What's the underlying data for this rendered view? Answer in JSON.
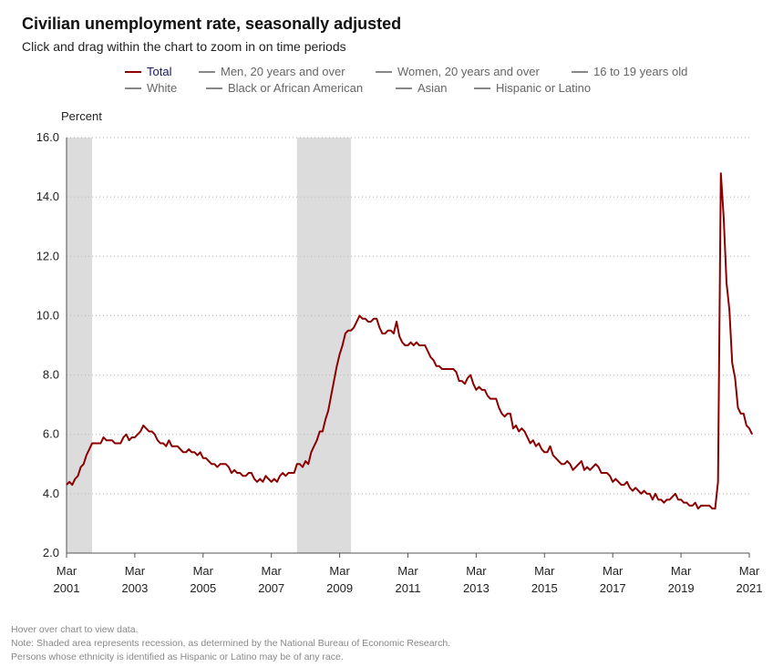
{
  "header": {
    "title": "Civilian unemployment rate, seasonally adjusted",
    "subtitle": "Click and drag within the chart to zoom in on time periods"
  },
  "legend": {
    "row1": [
      {
        "label": "Total",
        "active": true
      },
      {
        "label": "Men, 20 years and over",
        "active": false
      },
      {
        "label": "Women, 20 years and over",
        "active": false
      },
      {
        "label": "16 to 19 years old",
        "active": false
      }
    ],
    "row2": [
      {
        "label": "White",
        "active": false
      },
      {
        "label": "Black or African American",
        "active": false
      },
      {
        "label": "Asian",
        "active": false
      },
      {
        "label": "Hispanic or Latino",
        "active": false
      }
    ]
  },
  "colors": {
    "total_line": "#8b0000",
    "recession": "#dcdcdc",
    "inactive_legend": "#888888"
  },
  "footnotes": [
    "Hover over chart to view data.",
    "Note: Shaded area represents recession, as determined by the National Bureau of Economic Research.",
    "Persons whose ethnicity is identified as Hispanic or Latino may be of any race."
  ],
  "chart_data": {
    "type": "line",
    "ylabel": "Percent",
    "ylim": [
      2.0,
      16.0
    ],
    "yticks": [
      "2.0",
      "4.0",
      "6.0",
      "8.0",
      "10.0",
      "12.0",
      "14.0",
      "16.0"
    ],
    "xticks": [
      {
        "month": "Mar",
        "year": "2001",
        "date": "2001-03"
      },
      {
        "month": "Mar",
        "year": "2003",
        "date": "2003-03"
      },
      {
        "month": "Mar",
        "year": "2005",
        "date": "2005-03"
      },
      {
        "month": "Mar",
        "year": "2007",
        "date": "2007-03"
      },
      {
        "month": "Mar",
        "year": "2009",
        "date": "2009-03"
      },
      {
        "month": "Mar",
        "year": "2011",
        "date": "2011-03"
      },
      {
        "month": "Mar",
        "year": "2013",
        "date": "2013-03"
      },
      {
        "month": "Mar",
        "year": "2015",
        "date": "2015-03"
      },
      {
        "month": "Mar",
        "year": "2017",
        "date": "2017-03"
      },
      {
        "month": "Mar",
        "year": "2019",
        "date": "2019-03"
      },
      {
        "month": "Mar",
        "year": "2021",
        "date": "2021-03"
      }
    ],
    "x_range": [
      "2001-03",
      "2021-03"
    ],
    "grid": "horizontal-dotted",
    "legend_position": "top",
    "recessions": [
      {
        "start": "2001-03",
        "end": "2001-11"
      },
      {
        "start": "2007-12",
        "end": "2009-06"
      }
    ],
    "series": [
      {
        "name": "Total",
        "start": "2001-03",
        "values": [
          4.3,
          4.4,
          4.3,
          4.5,
          4.6,
          4.9,
          5.0,
          5.3,
          5.5,
          5.7,
          5.7,
          5.7,
          5.7,
          5.9,
          5.8,
          5.8,
          5.8,
          5.7,
          5.7,
          5.7,
          5.9,
          6.0,
          5.8,
          5.9,
          5.9,
          6.0,
          6.1,
          6.3,
          6.2,
          6.1,
          6.1,
          6.0,
          5.8,
          5.7,
          5.7,
          5.6,
          5.8,
          5.6,
          5.6,
          5.6,
          5.5,
          5.4,
          5.4,
          5.5,
          5.4,
          5.4,
          5.3,
          5.4,
          5.2,
          5.2,
          5.1,
          5.0,
          5.0,
          4.9,
          5.0,
          5.0,
          5.0,
          4.9,
          4.7,
          4.8,
          4.7,
          4.7,
          4.6,
          4.6,
          4.7,
          4.7,
          4.5,
          4.4,
          4.5,
          4.4,
          4.6,
          4.5,
          4.4,
          4.5,
          4.4,
          4.6,
          4.7,
          4.6,
          4.7,
          4.7,
          4.7,
          5.0,
          5.0,
          4.9,
          5.1,
          5.0,
          5.4,
          5.6,
          5.8,
          6.1,
          6.1,
          6.5,
          6.8,
          7.3,
          7.8,
          8.3,
          8.7,
          9.0,
          9.4,
          9.5,
          9.5,
          9.6,
          9.8,
          10.0,
          9.9,
          9.9,
          9.8,
          9.8,
          9.9,
          9.9,
          9.6,
          9.4,
          9.4,
          9.5,
          9.5,
          9.4,
          9.8,
          9.3,
          9.1,
          9.0,
          9.0,
          9.1,
          9.0,
          9.1,
          9.0,
          9.0,
          9.0,
          8.8,
          8.6,
          8.5,
          8.3,
          8.3,
          8.2,
          8.2,
          8.2,
          8.2,
          8.2,
          8.1,
          7.8,
          7.8,
          7.7,
          7.9,
          8.0,
          7.7,
          7.5,
          7.6,
          7.5,
          7.5,
          7.3,
          7.2,
          7.2,
          7.2,
          6.9,
          6.7,
          6.6,
          6.7,
          6.7,
          6.2,
          6.3,
          6.1,
          6.2,
          6.1,
          5.9,
          5.7,
          5.8,
          5.6,
          5.7,
          5.5,
          5.4,
          5.4,
          5.6,
          5.3,
          5.2,
          5.1,
          5.0,
          5.0,
          5.1,
          5.0,
          4.8,
          4.9,
          5.0,
          5.1,
          4.8,
          4.9,
          4.8,
          4.9,
          5.0,
          4.9,
          4.7,
          4.7,
          4.7,
          4.6,
          4.4,
          4.5,
          4.4,
          4.3,
          4.3,
          4.4,
          4.2,
          4.1,
          4.2,
          4.1,
          4.0,
          4.1,
          4.0,
          4.0,
          3.8,
          4.0,
          3.8,
          3.8,
          3.7,
          3.8,
          3.8,
          3.9,
          4.0,
          3.8,
          3.8,
          3.7,
          3.7,
          3.6,
          3.6,
          3.7,
          3.5,
          3.6,
          3.6,
          3.6,
          3.6,
          3.5,
          3.5,
          4.4,
          14.8,
          13.3,
          11.1,
          10.2,
          8.4,
          7.9,
          6.9,
          6.7,
          6.7,
          6.3,
          6.2,
          6.0
        ]
      }
    ]
  }
}
